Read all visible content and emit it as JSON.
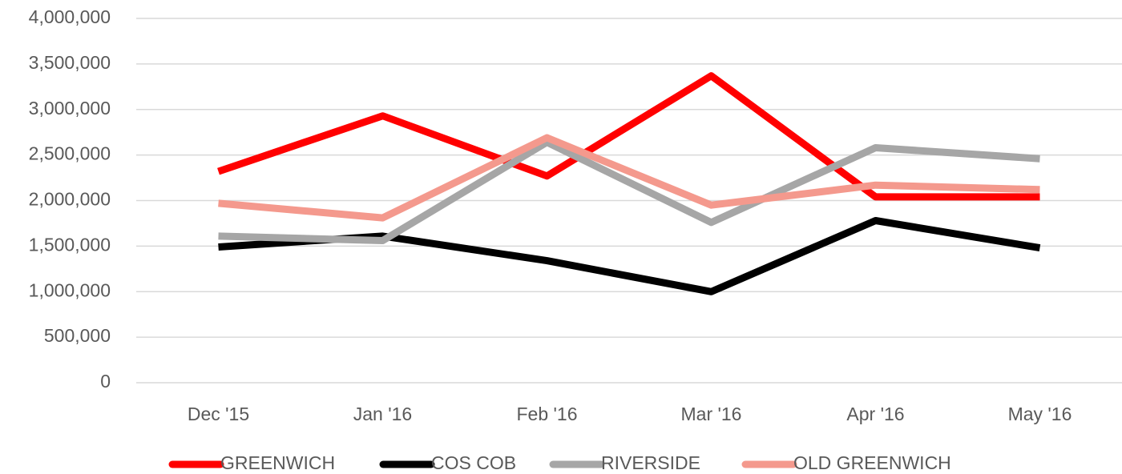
{
  "chart_data": {
    "type": "line",
    "categories": [
      "Dec '15",
      "Jan '16",
      "Feb '16",
      "Mar '16",
      "Apr '16",
      "May '16"
    ],
    "series": [
      {
        "name": "GREENWICH",
        "color": "#ff0000",
        "values": [
          2320000,
          2930000,
          2270000,
          3370000,
          2040000,
          2040000
        ]
      },
      {
        "name": "COS COB",
        "color": "#000000",
        "values": [
          1490000,
          1610000,
          1340000,
          1000000,
          1780000,
          1480000
        ]
      },
      {
        "name": "RIVERSIDE",
        "color": "#a6a6a6",
        "values": [
          1610000,
          1560000,
          2640000,
          1760000,
          2580000,
          2460000
        ]
      },
      {
        "name": "OLD GREENWICH",
        "color": "#f4998d",
        "values": [
          1970000,
          1810000,
          2690000,
          1950000,
          2170000,
          2120000
        ]
      }
    ],
    "ylim": [
      0,
      4000000
    ],
    "yticks": [
      0,
      {
        "value": 500000,
        "label": "500,000"
      },
      {
        "value": 1000000,
        "label": "1,000,000"
      },
      {
        "value": 1500000,
        "label": "1,500,000"
      },
      {
        "value": 2000000,
        "label": "2,000,000"
      },
      {
        "value": 2500000,
        "label": "2,500,000"
      },
      {
        "value": 3000000,
        "label": "3,000,000"
      },
      {
        "value": 3500000,
        "label": "3,500,000"
      },
      {
        "value": 4000000,
        "label": "4,000,000"
      }
    ],
    "grid": true,
    "legend": "bottom"
  }
}
